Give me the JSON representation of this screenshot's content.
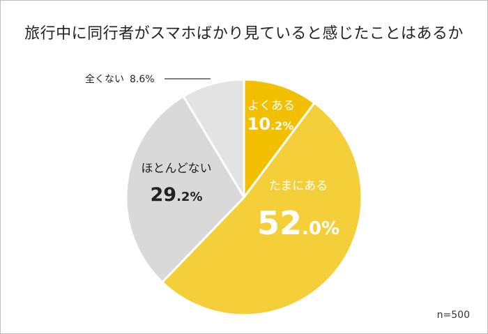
{
  "chart_data": {
    "type": "pie",
    "title": "旅行中に同行者がスマホばかり見ていると感じたことはあるか",
    "sample_note": "n=500",
    "slices": [
      {
        "label": "よくある",
        "value": 10.2,
        "int": "10",
        "dec": ".2%",
        "color": "#f2c000",
        "text_color": "#ffffff"
      },
      {
        "label": "たまにある",
        "value": 52.0,
        "int": "52",
        "dec": ".0%",
        "color": "#f5cf3a",
        "text_color": "#ffffff"
      },
      {
        "label": "ほとんどない",
        "value": 29.2,
        "int": "29",
        "dec": ".2%",
        "color": "#d9d9d9",
        "text_color": "#222222"
      },
      {
        "label": "全くない",
        "value": 8.6,
        "text": "8.6%",
        "color": "#e3e3e3",
        "text_color": "#222222"
      }
    ]
  }
}
